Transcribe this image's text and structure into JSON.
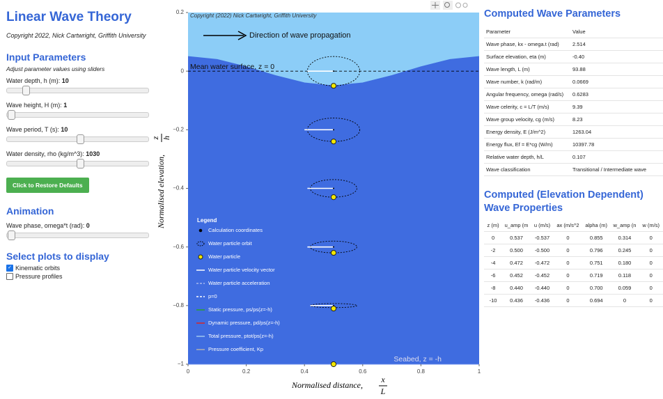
{
  "sidebar": {
    "title": "Linear Wave Theory",
    "copyright": "Copyright 2022, Nick Cartwright, Griffith University",
    "input_heading": "Input Parameters",
    "input_hint": "Adjust parameter values using sliders",
    "sliders": [
      {
        "label": "Water depth, h (m): ",
        "value": 10
      },
      {
        "label": "Wave height, H (m): ",
        "value": 1
      },
      {
        "label": "Wave period, T (s): ",
        "value": 10
      },
      {
        "label": "Water density, rho (kg/m^3): ",
        "value": 1030
      }
    ],
    "button": "Click to Restore Defaults",
    "animation_heading": "Animation",
    "phase_label": "Wave phase, omega*t (rad): ",
    "phase_value": 0,
    "plots_heading": "Select plots to display",
    "checkboxes": [
      {
        "label": "Kinematic orbits",
        "checked": true
      },
      {
        "label": "Pressure profiles",
        "checked": false
      }
    ]
  },
  "chart_data": {
    "type": "orbit",
    "xlabel": "Normalised  distance,",
    "xlabel_num": "x",
    "xlabel_den": "L",
    "ylabel": "Normalised  elevation,",
    "ylabel_num": "z",
    "ylabel_den": "h",
    "xlim": [
      0,
      1
    ],
    "ylim": [
      -1,
      0.2
    ],
    "xticks": [
      0,
      0.2,
      0.4,
      0.6,
      0.8,
      1
    ],
    "yticks": [
      0.2,
      0,
      {
        "value": -0.2,
        "label": "−0.2"
      },
      {
        "value": -0.4,
        "label": "−0.4"
      },
      {
        "value": -0.6,
        "label": "−0.6"
      },
      {
        "value": -0.8,
        "label": "−0.8"
      },
      {
        "value": -1,
        "label": "−1"
      }
    ],
    "annotations": {
      "copyright": "Copyright (2022) Nick Cartwright, Griffith University",
      "direction": "Direction of wave propagation",
      "mean_surface": "Mean water surface, z = 0",
      "seabed": "Seabed, z = -h"
    },
    "surface": {
      "x": [
        0,
        0.1,
        0.2,
        0.3,
        0.4,
        0.5,
        0.6,
        0.7,
        0.8,
        0.9,
        1
      ],
      "z": [
        0.05,
        0.04,
        0.015,
        -0.015,
        -0.04,
        -0.05,
        -0.04,
        -0.015,
        0.015,
        0.04,
        0.05
      ]
    },
    "orbits": {
      "x": [
        0.5,
        0.5,
        0.5,
        0.5,
        0.5
      ],
      "z": [
        0,
        -0.2,
        -0.4,
        -0.6,
        -0.8
      ],
      "rx": [
        0.09,
        0.09,
        0.08,
        0.08,
        0.08
      ],
      "rz": [
        0.05,
        0.04,
        0.03,
        0.02,
        0.007
      ]
    },
    "particles": {
      "color": "#f2e600",
      "x": [
        0.5,
        0.5,
        0.5,
        0.5,
        0.5,
        0.5
      ],
      "z": [
        -0.05,
        -0.24,
        -0.43,
        -0.62,
        -0.81,
        -1
      ]
    },
    "velocity": {
      "color": "#ffffff",
      "x_start": [
        0.5,
        0.5,
        0.5,
        0.5,
        0.5
      ],
      "x_end": [
        0.41,
        0.4,
        0.41,
        0.41,
        0.42
      ],
      "z": [
        0,
        -0.2,
        -0.4,
        -0.6,
        -0.8
      ]
    },
    "legend": {
      "title": "Legend",
      "items": [
        {
          "name": "Calculation coordinates",
          "color": "#000000",
          "marker": "dot"
        },
        {
          "name": "Water particle orbit",
          "color": "#000000",
          "marker": "dotted-ellipse"
        },
        {
          "name": "Water particle",
          "color": "#f2e600",
          "marker": "ring-dot"
        },
        {
          "name": "Water particle velocity vector",
          "color": "#ffffff",
          "marker": "line"
        },
        {
          "name": "Water particle acceleration",
          "color": "#a9b8ee",
          "marker": "dashed"
        },
        {
          "name": "p=0",
          "color": "#ffffff",
          "marker": "dashed"
        },
        {
          "name": "Static pressure, ps/ps(z=-h)",
          "color": "#2ca02c",
          "marker": "line"
        },
        {
          "name": "Dynamic pressure, pd/ps(z=-h)",
          "color": "#d62728",
          "marker": "line"
        },
        {
          "name": "Total pressure, ptot/ps(z=-h)",
          "color": "#9ec8f0",
          "marker": "line"
        },
        {
          "name": "Pressure coefficient, Kp",
          "color": "#b0b0b0",
          "marker": "line"
        }
      ]
    }
  },
  "params": {
    "title": "Computed Wave Parameters",
    "columns": [
      "Parameter",
      "Value"
    ],
    "rows": [
      [
        "Wave phase, kx - omega.t (rad)",
        "2.514"
      ],
      [
        "Surface elevation, eta (m)",
        "-0.40"
      ],
      [
        "Wave length, L (m)",
        "93.88"
      ],
      [
        "Wave number, k (rad/m)",
        "0.0669"
      ],
      [
        "Angular frequency, omega (rad/s)",
        "0.6283"
      ],
      [
        "Wave celerity, c = L/T (m/s)",
        "9.39"
      ],
      [
        "Wave group velocity, cg (m/s)",
        "8.23"
      ],
      [
        "Energy density, E (J/m^2)",
        "1263.04"
      ],
      [
        "Energy flux, Ef = E*cg (W/m)",
        "10397.78"
      ],
      [
        "Relative water depth, h/L",
        "0.107"
      ],
      [
        "Wave classification",
        "Transitional / Intermediate wave"
      ]
    ]
  },
  "elev": {
    "title": "Computed (Elevation Dependent) Wave Properties",
    "columns": [
      "z (m)",
      "u_amp (m",
      "u (m/s)",
      "ax (m/s^2",
      "alpha (m)",
      "w_amp (n",
      "w (m/s)"
    ],
    "rows": [
      [
        "0",
        "0.537",
        "-0.537",
        "0",
        "0.855",
        "0.314",
        "0"
      ],
      [
        "-2",
        "0.500",
        "-0.500",
        "0",
        "0.796",
        "0.245",
        "0"
      ],
      [
        "-4",
        "0.472",
        "-0.472",
        "0",
        "0.751",
        "0.180",
        "0"
      ],
      [
        "-6",
        "0.452",
        "-0.452",
        "0",
        "0.719",
        "0.118",
        "0"
      ],
      [
        "-8",
        "0.440",
        "-0.440",
        "0",
        "0.700",
        "0.059",
        "0"
      ],
      [
        "-10",
        "0.436",
        "-0.436",
        "0",
        "0.694",
        "0",
        "0"
      ]
    ]
  }
}
